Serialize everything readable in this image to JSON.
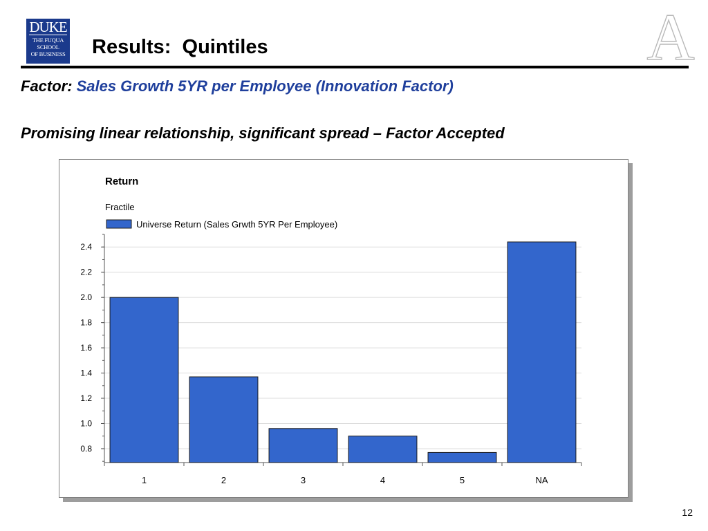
{
  "logo": {
    "line1": "DUKE",
    "line2": "THE FUQUA",
    "line3": "SCHOOL",
    "line4": "OF BUSINESS"
  },
  "watermark_letter": "A",
  "slide": {
    "title": "Results:  Quintiles",
    "factor_label": "Factor:",
    "factor_value": "Sales Growth 5YR per Employee (Innovation Factor)",
    "subtitle": "Promising linear relationship, significant spread – Factor Accepted",
    "page_number": "12"
  },
  "colors": {
    "bar_fill": "#3366cc",
    "bar_stroke": "#1a1a1a",
    "factor_text": "#1f3f9c",
    "logo_bg": "#1b3a8c"
  },
  "chart_data": {
    "type": "bar",
    "title": "Return",
    "legend_title": "Fractile",
    "legend_position": "top-left",
    "categories": [
      "1",
      "2",
      "3",
      "4",
      "5",
      "NA"
    ],
    "series": [
      {
        "name": "Universe Return (Sales Grwth 5YR Per Employee)",
        "values": [
          2.0,
          1.37,
          0.96,
          0.9,
          0.77,
          2.44
        ]
      }
    ],
    "ylim": [
      0.69,
      2.5
    ],
    "yticks": [
      "0.8",
      "1.0",
      "1.2",
      "1.4",
      "1.6",
      "1.8",
      "2.0",
      "2.2",
      "2.4"
    ],
    "grid": true
  }
}
